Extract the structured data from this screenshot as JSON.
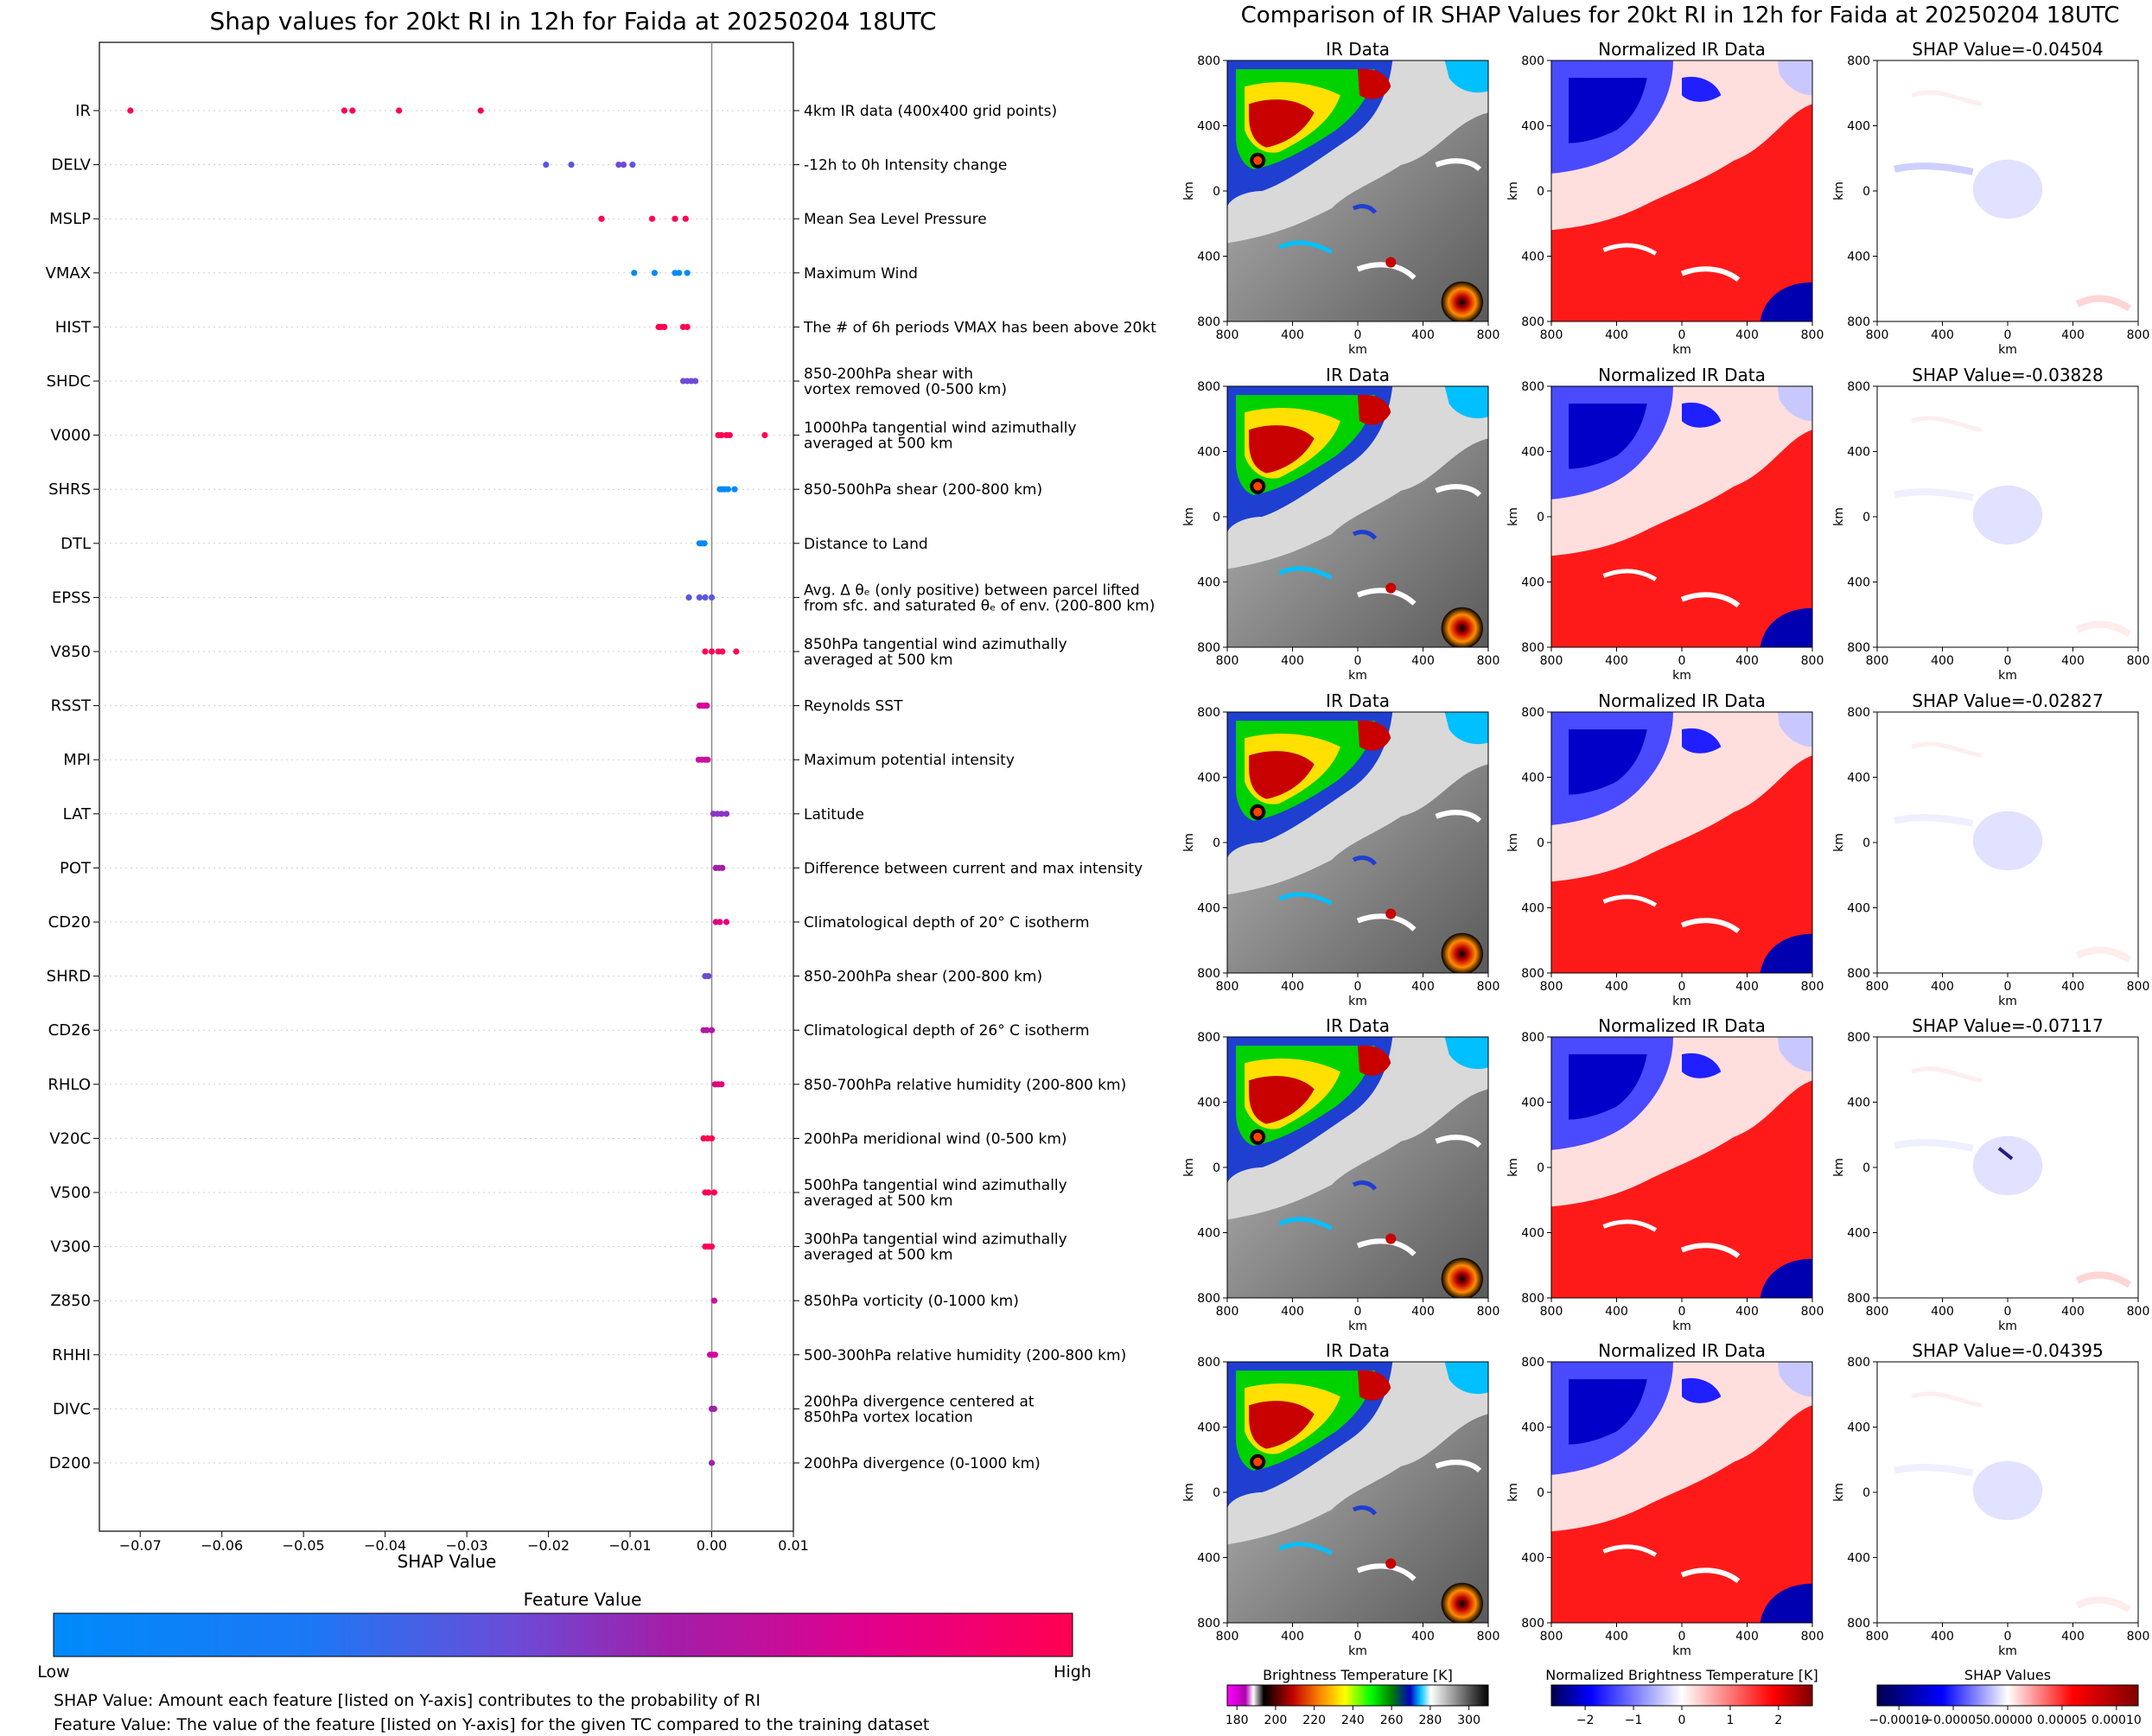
{
  "chart_data": [
    {
      "type": "scatter",
      "title": "Shap values for 20kt RI in 12h for Faida at 20250204 18UTC",
      "xlabel": "SHAP Value",
      "xlim": [
        -0.075,
        0.01
      ],
      "xticks": [
        "−0.07",
        "−0.06",
        "−0.05",
        "−0.04",
        "−0.03",
        "−0.02",
        "−0.01",
        "0.00",
        "0.01"
      ],
      "xtick_values": [
        -0.07,
        -0.06,
        -0.05,
        -0.04,
        -0.03,
        -0.02,
        -0.01,
        0.0,
        0.01
      ],
      "colorbar": {
        "title": "Feature Value",
        "low_label": "Low",
        "high_label": "High",
        "colors": [
          "#008afb",
          "#5a56e0",
          "#9f22a8",
          "#d8009a",
          "#ff0052"
        ]
      },
      "footnotes": [
        "SHAP Value: Amount each feature [listed on Y-axis] contributes to the probability of RI",
        "Feature Value: The value of the feature [listed on Y-axis] for the given TC compared to the training dataset"
      ],
      "features": [
        {
          "name": "IR",
          "description": [
            "4km IR data (400x400 grid points)"
          ],
          "values": [
            -0.0712,
            -0.045,
            -0.044,
            -0.0383,
            -0.0283
          ],
          "colors": [
            "#ff0052",
            "#ff0052",
            "#ff0052",
            "#ff0052",
            "#ff0052"
          ]
        },
        {
          "name": "DELV",
          "description": [
            "-12h to 0h Intensity change"
          ],
          "values": [
            -0.0203,
            -0.0172,
            -0.0114,
            -0.0108,
            -0.0097
          ],
          "colors": [
            "#5a56e0",
            "#5a56e0",
            "#6f4ad6",
            "#6f4ad6",
            "#5a56e0"
          ]
        },
        {
          "name": "MSLP",
          "description": [
            "Mean Sea Level Pressure"
          ],
          "values": [
            -0.0135,
            -0.0073,
            -0.0045,
            -0.0032
          ],
          "colors": [
            "#ff0052",
            "#ff0052",
            "#ff0052",
            "#ff0052"
          ]
        },
        {
          "name": "VMAX",
          "description": [
            "Maximum Wind"
          ],
          "values": [
            -0.0095,
            -0.007,
            -0.0045,
            -0.004,
            -0.003
          ],
          "colors": [
            "#008afb",
            "#008afb",
            "#008afb",
            "#008afb",
            "#008afb"
          ]
        },
        {
          "name": "HIST",
          "description": [
            "The # of 6h periods VMAX has been above 20kt"
          ],
          "values": [
            -0.0065,
            -0.0062,
            -0.0058,
            -0.0035,
            -0.003
          ],
          "colors": [
            "#ff0052",
            "#ff0052",
            "#ff0052",
            "#ff0052",
            "#ff0052"
          ]
        },
        {
          "name": "SHDC",
          "description": [
            "850-200hPa shear with",
            "vortex removed (0-500 km)"
          ],
          "values": [
            -0.0035,
            -0.003,
            -0.0025,
            -0.002
          ],
          "colors": [
            "#6f4ad6",
            "#6f4ad6",
            "#6f4ad6",
            "#6f4ad6"
          ]
        },
        {
          "name": "V000",
          "description": [
            "1000hPa tangential wind azimuthally",
            "averaged at 500 km"
          ],
          "values": [
            0.0008,
            0.0012,
            0.0018,
            0.0022,
            0.0065
          ],
          "colors": [
            "#ff0052",
            "#ff0052",
            "#ff0052",
            "#ff0052",
            "#ff0052"
          ]
        },
        {
          "name": "SHRS",
          "description": [
            "850-500hPa shear (200-800 km)"
          ],
          "values": [
            0.001,
            0.0013,
            0.0016,
            0.002,
            0.0028
          ],
          "colors": [
            "#008afb",
            "#008afb",
            "#008afb",
            "#008afb",
            "#008afb"
          ]
        },
        {
          "name": "DTL",
          "description": [
            "Distance to Land"
          ],
          "values": [
            -0.0015,
            -0.0012,
            -0.0009
          ],
          "colors": [
            "#008afb",
            "#008afb",
            "#008afb"
          ]
        },
        {
          "name": "EPSS",
          "description": [
            "Avg. Δ θₑ (only positive) between parcel lifted",
            "from sfc. and saturated θₑ of env. (200-800 km)"
          ],
          "values": [
            -0.0028,
            -0.0015,
            -0.0008,
            0.0
          ],
          "colors": [
            "#5a56e0",
            "#5a56e0",
            "#5a56e0",
            "#5a56e0"
          ]
        },
        {
          "name": "V850",
          "description": [
            "850hPa tangential wind azimuthally",
            "averaged at 500 km"
          ],
          "values": [
            -0.0008,
            0.0,
            0.0008,
            0.0013,
            0.003
          ],
          "colors": [
            "#ff0052",
            "#ff0052",
            "#ff0052",
            "#ff0052",
            "#ff0052"
          ]
        },
        {
          "name": "RSST",
          "description": [
            "Reynolds SST"
          ],
          "values": [
            -0.0015,
            -0.0012,
            -0.0009,
            -0.0006
          ],
          "colors": [
            "#d8009a",
            "#d8009a",
            "#d8009a",
            "#d8009a"
          ]
        },
        {
          "name": "MPI",
          "description": [
            "Maximum potential intensity"
          ],
          "values": [
            -0.0016,
            -0.0012,
            -0.0008,
            -0.0005
          ],
          "colors": [
            "#c8139e",
            "#c8139e",
            "#c8139e",
            "#c8139e"
          ]
        },
        {
          "name": "LAT",
          "description": [
            "Latitude"
          ],
          "values": [
            0.0002,
            0.0007,
            0.0012,
            0.0018
          ],
          "colors": [
            "#8a33c6",
            "#8a33c6",
            "#8a33c6",
            "#8a33c6"
          ]
        },
        {
          "name": "POT",
          "description": [
            "Difference between current and max intensity"
          ],
          "values": [
            0.0005,
            0.0009,
            0.0013
          ],
          "colors": [
            "#9f22a8",
            "#9f22a8",
            "#9f22a8"
          ]
        },
        {
          "name": "CD20",
          "description": [
            "Climatological depth of 20° C isotherm"
          ],
          "values": [
            0.0005,
            0.001,
            0.0018
          ],
          "colors": [
            "#e0007a",
            "#e0007a",
            "#e0007a"
          ]
        },
        {
          "name": "SHRD",
          "description": [
            "850-200hPa shear (200-800 km)"
          ],
          "values": [
            -0.0008,
            -0.0004
          ],
          "colors": [
            "#6f4ad6",
            "#6f4ad6"
          ]
        },
        {
          "name": "CD26",
          "description": [
            "Climatological depth of 26° C isotherm"
          ],
          "values": [
            -0.001,
            -0.0006,
            0.0
          ],
          "colors": [
            "#b1189f",
            "#b1189f",
            "#b1189f"
          ]
        },
        {
          "name": "RHLO",
          "description": [
            "850-700hPa relative humidity (200-800 km)"
          ],
          "values": [
            0.0004,
            0.0008,
            0.0012
          ],
          "colors": [
            "#e0007a",
            "#e0007a",
            "#e0007a"
          ]
        },
        {
          "name": "V20C",
          "description": [
            "200hPa meridional wind (0-500 km)"
          ],
          "values": [
            -0.001,
            -0.0005,
            0.0
          ],
          "colors": [
            "#ff0052",
            "#ff0052",
            "#ff0052"
          ]
        },
        {
          "name": "V500",
          "description": [
            "500hPa tangential wind azimuthally",
            "averaged at 500 km"
          ],
          "values": [
            -0.0008,
            -0.0004,
            0.0003
          ],
          "colors": [
            "#ff0052",
            "#ff0052",
            "#ff0052"
          ]
        },
        {
          "name": "V300",
          "description": [
            "300hPa tangential wind azimuthally",
            "averaged at 500 km"
          ],
          "values": [
            -0.0008,
            -0.0004,
            0.0
          ],
          "colors": [
            "#ff0052",
            "#ff0052",
            "#ff0052"
          ]
        },
        {
          "name": "Z850",
          "description": [
            "850hPa vorticity (0-1000 km)"
          ],
          "values": [
            0.0003
          ],
          "colors": [
            "#c8139e"
          ]
        },
        {
          "name": "RHHI",
          "description": [
            "500-300hPa relative humidity (200-800 km)"
          ],
          "values": [
            -0.0002,
            0.0001,
            0.0004
          ],
          "colors": [
            "#d8009a",
            "#d8009a",
            "#d8009a"
          ]
        },
        {
          "name": "DIVC",
          "description": [
            "200hPa divergence centered at",
            "850hPa vortex location"
          ],
          "values": [
            0.0,
            0.0003
          ],
          "colors": [
            "#9f22a8",
            "#9f22a8"
          ]
        },
        {
          "name": "D200",
          "description": [
            "200hPa divergence (0-1000 km)"
          ],
          "values": [
            0.0
          ],
          "colors": [
            "#9f22a8"
          ]
        }
      ]
    },
    {
      "type": "heatmap",
      "title": "Comparison of IR SHAP Values for 20kt RI in 12h for Faida at 20250204 18UTC",
      "panel_titles": {
        "ir": "IR Data",
        "norm": "Normalized IR Data",
        "shap_prefix": "SHAP Value="
      },
      "shap_values": [
        "-0.04504",
        "-0.03828",
        "-0.02827",
        "-0.07117",
        "-0.04395"
      ],
      "axis_label": "km",
      "ticks": [
        "800",
        "400",
        "0",
        "400",
        "800"
      ],
      "tick_values": [
        -800,
        -400,
        0,
        400,
        800
      ],
      "colorbars": [
        {
          "title": "Brightness Temperature [K]",
          "ticks": [
            "180",
            "200",
            "220",
            "240",
            "260",
            "280",
            "300"
          ],
          "tick_values": [
            180,
            200,
            220,
            240,
            260,
            280,
            300
          ],
          "range": [
            175,
            310
          ]
        },
        {
          "title": "Normalized Brightness Temperature [K]",
          "ticks": [
            "−2",
            "−1",
            "0",
            "1",
            "2"
          ],
          "tick_values": [
            -2,
            -1,
            0,
            1,
            2
          ],
          "range": [
            -2.7,
            2.7
          ]
        },
        {
          "title": "SHAP Values",
          "ticks": [
            "−0.00010",
            "−0.00005",
            "0.00000",
            "0.00005",
            "0.00010"
          ],
          "tick_values": [
            -0.0001,
            -5e-05,
            0,
            5e-05,
            0.0001
          ],
          "range": [
            -0.00012,
            0.00012
          ]
        }
      ]
    }
  ]
}
